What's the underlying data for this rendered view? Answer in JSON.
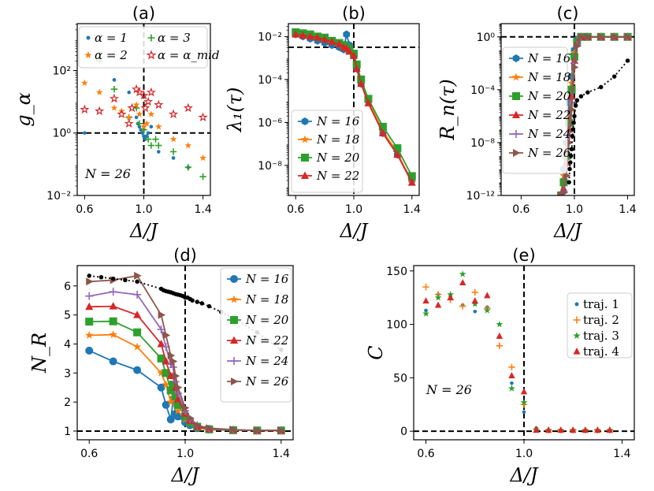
{
  "colors": {
    "blue": "#1f77b4",
    "orange": "#ff7f0e",
    "green": "#2ca02c",
    "red": "#d62728",
    "purple": "#9467bd",
    "brown": "#8c564b",
    "black": "#000000"
  },
  "chart_data": [
    {
      "id": "a",
      "type": "scatter",
      "title": "(a)",
      "xlabel": "Δ/J",
      "ylabel": "g_α",
      "yscale": "log",
      "xlim": [
        0.55,
        1.45
      ],
      "ylim_log10": [
        -2,
        3.5
      ],
      "xticks": [
        0.6,
        1.0,
        1.4
      ],
      "xtick_labels": [
        "0.6",
        "1.0",
        "1.4"
      ],
      "yticks_log10": [
        -2,
        0,
        2
      ],
      "ytick_labels": [
        "10⁻²",
        "10⁰",
        "10²"
      ],
      "annotation": "N = 26",
      "refline_x": 1.0,
      "refline_y_log10": 0,
      "legend": {
        "position": "top",
        "columns": 2
      },
      "series": [
        {
          "name": "α = 1",
          "color": "blue",
          "marker": "dot",
          "x": [
            0.6,
            0.8,
            0.9,
            0.95,
            0.96,
            0.97,
            0.98,
            0.99,
            1.0,
            1.01,
            1.02,
            1.03,
            1.05,
            1.1,
            1.2,
            1.3
          ],
          "y_log10": [
            0,
            1.7,
            1.3,
            0.5,
            0.3,
            0.2,
            0.1,
            0.0,
            -0.1,
            -0.2,
            -0.1,
            0,
            0.2,
            -0.6,
            -0.8,
            -1.1
          ]
        },
        {
          "name": "α = 3",
          "color": "green",
          "marker": "plus",
          "x": [
            0.7,
            0.8,
            0.9,
            0.95,
            0.97,
            1.0,
            1.03,
            1.05,
            1.08,
            1.1,
            1.2,
            1.3,
            1.4
          ],
          "y_log10": [
            2.3,
            1.4,
            0.5,
            0.8,
            0.3,
            0.1,
            -0.2,
            -0.4,
            -0.2,
            -0.4,
            -0.6,
            -1.1,
            -1.4
          ]
        },
        {
          "name": "α = 2",
          "color": "orange",
          "marker": "star",
          "x": [
            0.6,
            0.7,
            0.8,
            0.85,
            0.9,
            0.95,
            0.97,
            1.0,
            1.02,
            1.05,
            1.1,
            1.2,
            1.3,
            1.4
          ],
          "y_log10": [
            1.6,
            1.3,
            0.8,
            0.7,
            0.5,
            0.9,
            0.6,
            0.2,
            0.3,
            0.6,
            0.2,
            -0.2,
            -0.4,
            -0.8
          ]
        },
        {
          "name": "α = α_mid",
          "color": "red",
          "marker": "star-open",
          "x": [
            0.6,
            0.7,
            0.8,
            0.85,
            0.9,
            0.92,
            0.95,
            0.97,
            1.0,
            1.01,
            1.03,
            1.05,
            1.1,
            1.2,
            1.3,
            1.4
          ],
          "y_log10": [
            0.75,
            0.7,
            1.1,
            0.6,
            0.3,
            0.8,
            1.4,
            1.3,
            1.2,
            0.8,
            1.0,
            1.3,
            0.9,
            0.6,
            0.8,
            0.5
          ]
        }
      ]
    },
    {
      "id": "b",
      "type": "line",
      "title": "(b)",
      "xlabel": "Δ/J",
      "ylabel": "λ₁(τ)",
      "yscale": "log",
      "xlim": [
        0.55,
        1.45
      ],
      "ylim_log10": [
        -9.4,
        -1.4
      ],
      "xticks": [
        0.6,
        1.0,
        1.4
      ],
      "xtick_labels": [
        "0.6",
        "1.0",
        "1.4"
      ],
      "yticks_log10": [
        -8,
        -6,
        -4,
        -2
      ],
      "ytick_labels": [
        "10⁻⁸",
        "10⁻⁶",
        "10⁻⁴",
        "10⁻²"
      ],
      "refline_x": 1.0,
      "refline_y_log10": -2.5,
      "legend": {
        "position": "lower-left"
      },
      "x": [
        0.6,
        0.65,
        0.7,
        0.75,
        0.8,
        0.85,
        0.9,
        0.93,
        0.95,
        0.97,
        1.0,
        1.02,
        1.05,
        1.1,
        1.2,
        1.3,
        1.4
      ],
      "series": [
        {
          "name": "N = 16",
          "color": "blue",
          "marker": "hexagon",
          "y_log10": [
            -1.9,
            -2.0,
            -2.1,
            -2.2,
            -2.3,
            -2.4,
            -2.5,
            -2.6,
            -1.9,
            -2.4,
            -2.9,
            -3.5,
            -4.2,
            -5.0,
            -6.5,
            -7.5,
            -8.7
          ]
        },
        {
          "name": "N = 18",
          "color": "orange",
          "marker": "star",
          "y_log10": [
            -1.85,
            -1.9,
            -2.0,
            -2.05,
            -2.1,
            -2.25,
            -2.35,
            -2.45,
            -2.5,
            -2.6,
            -2.8,
            -3.4,
            -4.1,
            -5.0,
            -6.4,
            -7.4,
            -8.8
          ]
        },
        {
          "name": "N = 20",
          "color": "green",
          "marker": "square",
          "y_log10": [
            -1.8,
            -1.85,
            -1.9,
            -2.0,
            -2.05,
            -2.2,
            -2.3,
            -2.4,
            -2.5,
            -2.6,
            -2.8,
            -3.3,
            -4.0,
            -4.9,
            -6.2,
            -7.2,
            -8.5
          ]
        },
        {
          "name": "N = 22",
          "color": "red",
          "marker": "triangle",
          "y_log10": [
            -1.9,
            -1.95,
            -2.0,
            -2.05,
            -2.15,
            -2.25,
            -2.35,
            -2.5,
            -2.55,
            -2.7,
            -2.9,
            -3.5,
            -4.2,
            -5.1,
            -6.5,
            -7.5,
            -8.8
          ]
        }
      ]
    },
    {
      "id": "c",
      "type": "line",
      "title": "(c)",
      "xlabel": "Δ/J",
      "ylabel": "R_n(τ)",
      "yscale": "log",
      "xlim": [
        0.45,
        1.45
      ],
      "ylim_log10": [
        -12,
        1.0
      ],
      "xticks": [
        0.6,
        1.0,
        1.4
      ],
      "xtick_labels": [
        "0.6",
        "1.0",
        "1.4"
      ],
      "yticks_log10": [
        -12,
        -8,
        -4,
        0
      ],
      "ytick_labels": [
        "10⁻¹²",
        "10⁻⁸",
        "10⁻⁴",
        "10⁰"
      ],
      "refline_x": 1.0,
      "refline_y_log10": 0,
      "legend": {
        "position": "left"
      },
      "x": [
        0.9,
        0.92,
        0.94,
        0.96,
        0.98,
        1.0,
        1.02,
        1.05,
        1.1,
        1.2,
        1.3,
        1.4
      ],
      "series": [
        {
          "name": "N = 16",
          "color": "blue",
          "marker": "hexagon",
          "y_log10": [
            -12,
            -10,
            -8,
            -5,
            -3,
            -1.0,
            -0.2,
            0,
            0,
            0,
            0,
            0
          ]
        },
        {
          "name": "N = 18",
          "color": "orange",
          "marker": "star",
          "y_log10": [
            -12,
            -10.5,
            -8.5,
            -6,
            -3.5,
            -1.2,
            -0.3,
            0,
            0,
            0,
            0,
            0
          ]
        },
        {
          "name": "N = 20",
          "color": "green",
          "marker": "square",
          "y_log10": [
            -12,
            -11,
            -9,
            -6.5,
            -4,
            -1.5,
            -0.4,
            0,
            0,
            0,
            0,
            0
          ]
        },
        {
          "name": "N = 22",
          "color": "red",
          "marker": "triangle",
          "y_log10": [
            -12,
            -11.5,
            -9.5,
            -7,
            -4.5,
            -1.8,
            -0.5,
            0,
            0,
            0,
            0,
            0
          ]
        },
        {
          "name": "N = 24",
          "color": "purple",
          "marker": "plus",
          "y_log10": [
            -12,
            -11.7,
            -10,
            -7.5,
            -5,
            -2.0,
            -0.6,
            0,
            0,
            0,
            0,
            0
          ]
        },
        {
          "name": "N = 26",
          "color": "brown",
          "marker": "triangle-right",
          "y_log10": [
            -12,
            -11.8,
            -10.5,
            -8,
            -5.5,
            -2.3,
            -0.7,
            0,
            0,
            0,
            0,
            0
          ]
        }
      ],
      "extra_series": {
        "name": "",
        "color": "black",
        "marker": "dot",
        "style": "dotted",
        "x": [
          0.96,
          0.965,
          0.97,
          0.975,
          0.98,
          0.985,
          0.99,
          0.995,
          1.0,
          1.01,
          1.02,
          1.05,
          1.1,
          1.2,
          1.3,
          1.4
        ],
        "y_log10": [
          -11,
          -10,
          -9.5,
          -9,
          -8.5,
          -7.5,
          -7,
          -6.5,
          -6,
          -5.2,
          -4.8,
          -4.5,
          -4.2,
          -3.8,
          -3.0,
          -1.8
        ]
      }
    },
    {
      "id": "d",
      "type": "line",
      "title": "(d)",
      "xlabel": "Δ/J",
      "ylabel": "N_R",
      "xlim": [
        0.55,
        1.45
      ],
      "ylim": [
        0.7,
        6.7
      ],
      "xticks": [
        0.6,
        1.0,
        1.4
      ],
      "xtick_labels": [
        "0.6",
        "1.0",
        "1.4"
      ],
      "yticks": [
        1,
        2,
        3,
        4,
        5,
        6
      ],
      "ytick_labels": [
        "1",
        "2",
        "3",
        "4",
        "5",
        "6"
      ],
      "refline_x": 1.0,
      "refline_y": 1,
      "legend": {
        "position": "upper-right"
      },
      "x": [
        0.6,
        0.7,
        0.8,
        0.9,
        0.92,
        0.94,
        0.95,
        0.96,
        0.97,
        1.0,
        1.02,
        1.05,
        1.1,
        1.2,
        1.3,
        1.4
      ],
      "series": [
        {
          "name": "N = 16",
          "color": "blue",
          "marker": "circle",
          "values": [
            3.77,
            3.4,
            3.1,
            2.5,
            1.9,
            1.4,
            2.1,
            1.6,
            1.5,
            1.3,
            1.2,
            1.1,
            1.05,
            1.03,
            1.02,
            1.02
          ]
        },
        {
          "name": "N = 18",
          "color": "orange",
          "marker": "star",
          "values": [
            4.3,
            4.32,
            3.9,
            3.0,
            2.6,
            2.0,
            2.4,
            2.0,
            1.7,
            1.4,
            1.25,
            1.1,
            1.05,
            1.03,
            1.02,
            1.02
          ]
        },
        {
          "name": "N = 20",
          "color": "green",
          "marker": "square",
          "values": [
            4.77,
            4.78,
            4.4,
            3.5,
            3.0,
            2.4,
            2.6,
            2.2,
            1.9,
            1.5,
            1.3,
            1.15,
            1.06,
            1.03,
            1.02,
            1.02
          ]
        },
        {
          "name": "N = 22",
          "color": "red",
          "marker": "triangle",
          "values": [
            5.28,
            5.3,
            5.0,
            4.0,
            3.4,
            2.9,
            2.9,
            2.5,
            2.1,
            1.6,
            1.35,
            1.15,
            1.07,
            1.04,
            1.02,
            1.02
          ]
        },
        {
          "name": "N = 24",
          "color": "purple",
          "marker": "plus",
          "values": [
            5.65,
            5.8,
            5.7,
            4.5,
            3.9,
            3.3,
            3.2,
            2.7,
            2.3,
            1.7,
            1.4,
            1.2,
            1.08,
            1.04,
            1.02,
            1.02
          ]
        },
        {
          "name": "N = 26",
          "color": "brown",
          "marker": "triangle-right",
          "values": [
            6.15,
            6.2,
            6.35,
            5.0,
            4.3,
            3.6,
            3.4,
            2.9,
            2.5,
            1.8,
            1.45,
            1.2,
            1.1,
            1.05,
            1.02,
            1.02
          ]
        }
      ],
      "extra_series": {
        "name": "",
        "color": "black",
        "marker": "dot",
        "style": "dotted",
        "x": [
          0.6,
          0.65,
          0.7,
          0.75,
          0.8,
          0.9,
          0.91,
          0.92,
          0.93,
          0.94,
          0.95,
          0.96,
          0.97,
          0.98,
          0.99,
          1.0,
          1.01,
          1.02,
          1.03,
          1.05,
          1.07,
          1.1,
          1.15,
          1.2,
          1.3,
          1.4
        ],
        "values": [
          6.35,
          6.3,
          6.25,
          6.2,
          6.15,
          5.9,
          5.85,
          5.82,
          5.8,
          5.78,
          5.75,
          5.72,
          5.7,
          5.68,
          5.65,
          5.6,
          5.6,
          5.55,
          5.5,
          5.45,
          5.4,
          5.3,
          5.1,
          4.9,
          4.4,
          3.8
        ]
      }
    },
    {
      "id": "e",
      "type": "scatter",
      "title": "(e)",
      "xlabel": "Δ/J",
      "ylabel": "C",
      "xlim": [
        0.55,
        1.45
      ],
      "ylim": [
        -8,
        155
      ],
      "xticks": [
        0.6,
        1.0,
        1.4
      ],
      "xtick_labels": [
        "0.6",
        "1.0",
        "1.4"
      ],
      "yticks": [
        0,
        50,
        100,
        150
      ],
      "ytick_labels": [
        "0",
        "50",
        "100",
        "150"
      ],
      "annotation": "N = 26",
      "refline_x": 1.0,
      "refline_y": 0,
      "legend": {
        "position": "upper-right"
      },
      "x": [
        0.6,
        0.65,
        0.7,
        0.75,
        0.8,
        0.85,
        0.9,
        0.95,
        1.0,
        1.05,
        1.1,
        1.15,
        1.2,
        1.25,
        1.3,
        1.35
      ],
      "series": [
        {
          "name": "traj. 1",
          "color": "blue",
          "marker": "dot",
          "values": [
            113,
            128,
            127,
            118,
            112,
            116,
            88,
            45,
            18,
            3,
            1,
            1,
            1,
            1,
            1,
            1
          ]
        },
        {
          "name": "traj. 2",
          "color": "orange",
          "marker": "plus",
          "values": [
            135,
            128,
            123,
            117,
            130,
            115,
            80,
            60,
            25,
            2,
            1,
            1,
            1,
            1,
            1,
            1
          ]
        },
        {
          "name": "traj. 3",
          "color": "green",
          "marker": "star",
          "values": [
            110,
            125,
            128,
            147,
            119,
            113,
            100,
            40,
            27,
            1,
            1,
            1,
            1,
            1,
            1,
            1
          ]
        },
        {
          "name": "traj. 4",
          "color": "red",
          "marker": "triangle",
          "values": [
            122,
            118,
            125,
            139,
            122,
            127,
            89,
            52,
            37,
            1,
            1,
            1,
            1,
            1,
            1,
            1
          ]
        }
      ]
    }
  ]
}
